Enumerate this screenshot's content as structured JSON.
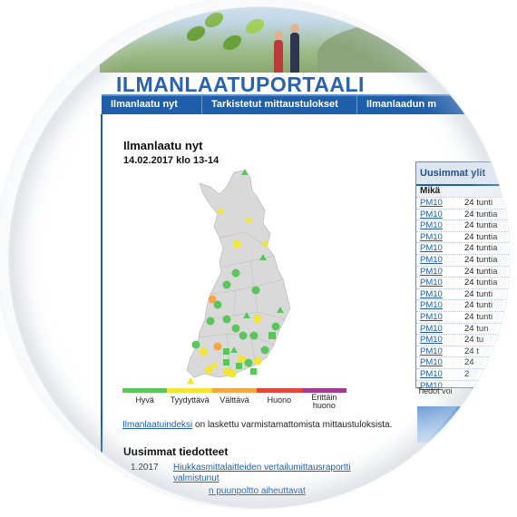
{
  "site": {
    "brand": "ILMANLAATUPORTAALI"
  },
  "nav": {
    "items": [
      {
        "label": "Ilmanlaatu nyt"
      },
      {
        "label": "Tarkistetut mittaustulokset"
      },
      {
        "label": "Ilmanlaadun m"
      }
    ]
  },
  "main": {
    "title": "Ilmanlaatu nyt",
    "timestamp": "14.02.2017 klo 13-14",
    "legend": [
      {
        "label": "Hyvä",
        "color": "#5bc55b"
      },
      {
        "label": "Tyydyttävä",
        "color": "#f3e535"
      },
      {
        "label": "Välttävä",
        "color": "#f4a644"
      },
      {
        "label": "Huono",
        "color": "#e4453c"
      },
      {
        "label": "Erittäin huono",
        "color": "#a33c90"
      }
    ],
    "index_link": "Ilmanlaatuindeksi",
    "index_text": " on laskettu varmistamattomista mittaustuloksista."
  },
  "news": {
    "heading": "Uusimmat tiedotteet",
    "item1_date": "1.2017",
    "item1_title": "Hiukkasmittalaitteiden vertailumittausraportti valmistunut",
    "item2_title": "n puunpoltto aiheuttavat"
  },
  "panel": {
    "title": "Uusimmat ylit",
    "header": "Mikä",
    "rows": [
      {
        "what": "PM10",
        "duration": "24 tunti"
      },
      {
        "what": "PM10",
        "duration": "24 tuntia"
      },
      {
        "what": "PM10",
        "duration": "24 tuntia"
      },
      {
        "what": "PM10",
        "duration": "24 tuntia"
      },
      {
        "what": "PM10",
        "duration": "24 tuntia"
      },
      {
        "what": "PM10",
        "duration": "24 tuntia"
      },
      {
        "what": "PM10",
        "duration": "24 tuntia"
      },
      {
        "what": "PM10",
        "duration": "24 tuntia"
      },
      {
        "what": "PM10",
        "duration": "24 tunti"
      },
      {
        "what": "PM10",
        "duration": "24 tunti"
      },
      {
        "what": "PM10",
        "duration": "24 tunti"
      },
      {
        "what": "PM10",
        "duration": "24 tun"
      },
      {
        "what": "PM10",
        "duration": "24 tu"
      },
      {
        "what": "PM10",
        "duration": "24 t"
      },
      {
        "what": "PM10",
        "duration": "24"
      },
      {
        "what": "PM10",
        "duration": "2"
      },
      {
        "what": "PM10",
        "duration": ""
      }
    ],
    "footer": "Tiedot voi"
  },
  "colors": {
    "nav": "#1f5ea8",
    "brand": "#2a62b0",
    "good": "#5bc55b",
    "satisfactory": "#f3e535",
    "fair": "#f4a644"
  }
}
